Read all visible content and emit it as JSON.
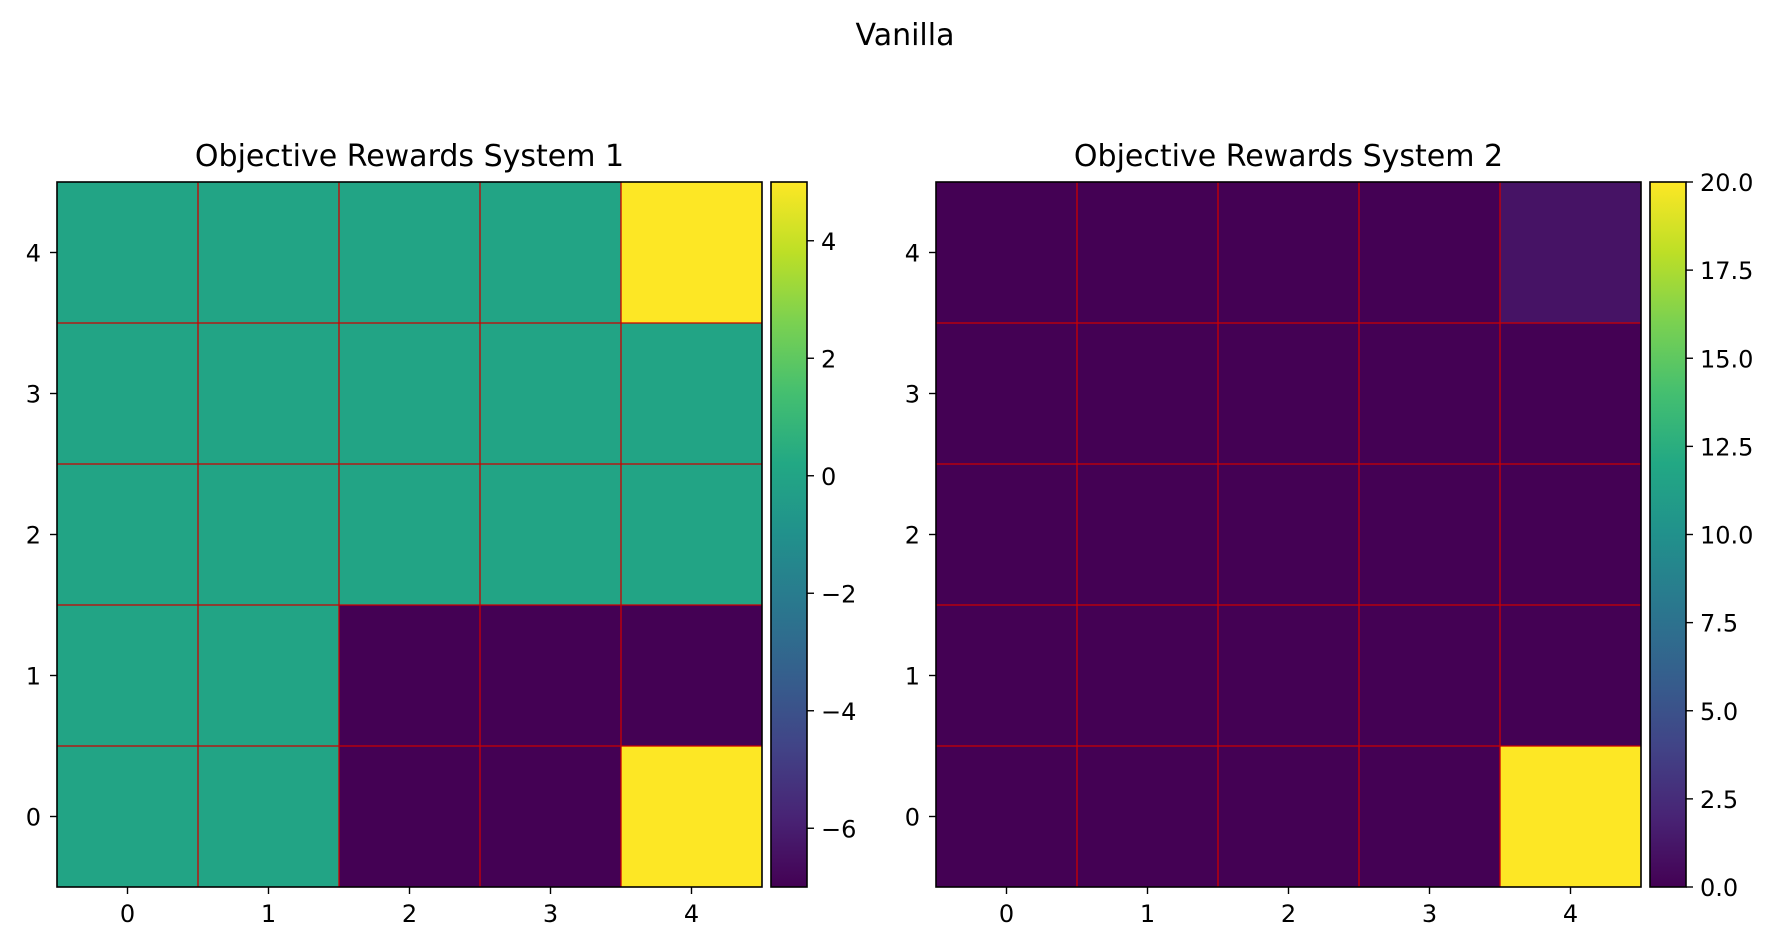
{
  "figure": {
    "suptitle": "Vanilla"
  },
  "chart_data": [
    {
      "type": "heatmap",
      "title": "Objective Rewards System 1",
      "xlabel": "",
      "ylabel": "",
      "x": [
        0,
        1,
        2,
        3,
        4
      ],
      "y": [
        0,
        1,
        2,
        3,
        4
      ],
      "xticks": [
        "0",
        "1",
        "2",
        "3",
        "4"
      ],
      "yticks": [
        "0",
        "1",
        "2",
        "3",
        "4"
      ],
      "values_by_row_y0_to_y4": [
        [
          0,
          0,
          -7,
          -7,
          5
        ],
        [
          0,
          0,
          -7,
          -7,
          -7
        ],
        [
          0,
          0,
          0,
          0,
          0
        ],
        [
          0,
          0,
          0,
          0,
          0
        ],
        [
          0,
          0,
          0,
          0,
          5
        ]
      ],
      "colormap": "viridis",
      "colorbar": {
        "vmin": -7,
        "vmax": 5,
        "ticks": [
          -6,
          -4,
          -2,
          0,
          2,
          4
        ],
        "tick_labels": [
          "−6",
          "−4",
          "−2",
          "0",
          "2",
          "4"
        ]
      },
      "grid_color": "#cc0000",
      "grid": true
    },
    {
      "type": "heatmap",
      "title": "Objective Rewards System 2",
      "xlabel": "",
      "ylabel": "",
      "x": [
        0,
        1,
        2,
        3,
        4
      ],
      "y": [
        0,
        1,
        2,
        3,
        4
      ],
      "xticks": [
        "0",
        "1",
        "2",
        "3",
        "4"
      ],
      "yticks": [
        "0",
        "1",
        "2",
        "3",
        "4"
      ],
      "values_by_row_y0_to_y4": [
        [
          0,
          0,
          0,
          0,
          20
        ],
        [
          0,
          0,
          0,
          0,
          0
        ],
        [
          0,
          0,
          0,
          0,
          0
        ],
        [
          0,
          0,
          0,
          0,
          0
        ],
        [
          0,
          0,
          0,
          0,
          1
        ]
      ],
      "colormap": "viridis",
      "colorbar": {
        "vmin": 0,
        "vmax": 20,
        "ticks": [
          0,
          2.5,
          5,
          7.5,
          10,
          12.5,
          15,
          17.5,
          20
        ],
        "tick_labels": [
          "0.0",
          "2.5",
          "5.0",
          "7.5",
          "10.0",
          "12.5",
          "15.0",
          "17.5",
          "20.0"
        ]
      },
      "grid_color": "#cc0000",
      "grid": true
    }
  ]
}
